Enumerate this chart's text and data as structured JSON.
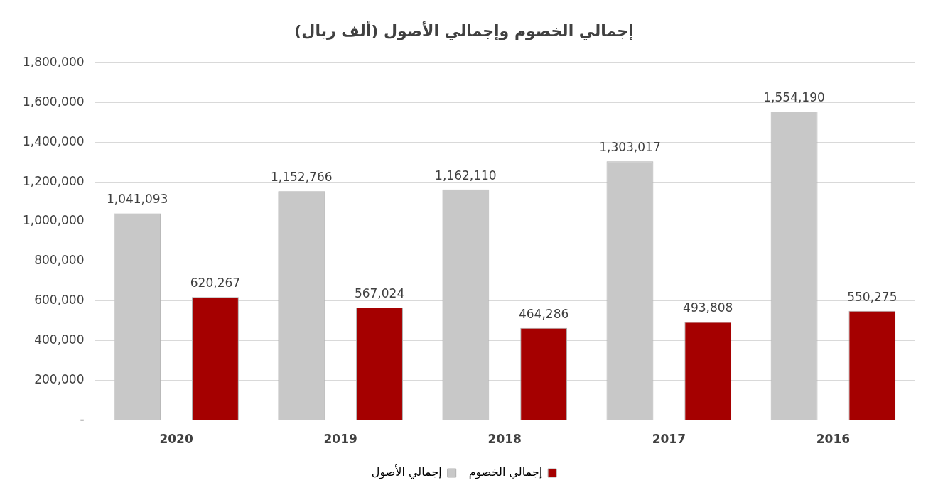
{
  "chart_data": {
    "type": "bar",
    "title": "إجمالي الخصوم وإجمالي الأصول (ألف ريال)",
    "categories": [
      "2020",
      "2019",
      "2018",
      "2017",
      "2016"
    ],
    "series": [
      {
        "name": "إجمالي الأصول",
        "color": "#c8c8c8",
        "values": [
          1041093,
          1152766,
          1162110,
          1303017,
          1554190
        ],
        "value_labels": [
          "1,041,093",
          "1,152,766",
          "1,162,110",
          "1,303,017",
          "1,554,190"
        ]
      },
      {
        "name": "إجمالي الخصوم",
        "color": "#a50000",
        "values": [
          620267,
          567024,
          464286,
          493808,
          550275
        ],
        "value_labels": [
          "620,267",
          "567,024",
          "464,286",
          "493,808",
          "550,275"
        ]
      }
    ],
    "ylim": [
      0,
      1800000
    ],
    "yticks": [
      {
        "value": 0,
        "label": "-"
      },
      {
        "value": 200000,
        "label": "200,000"
      },
      {
        "value": 400000,
        "label": "400,000"
      },
      {
        "value": 600000,
        "label": "600,000"
      },
      {
        "value": 800000,
        "label": "800,000"
      },
      {
        "value": 1000000,
        "label": "1,000,000"
      },
      {
        "value": 1200000,
        "label": "1,200,000"
      },
      {
        "value": 1400000,
        "label": "1,400,000"
      },
      {
        "value": 1600000,
        "label": "1,600,000"
      },
      {
        "value": 1800000,
        "label": "1,800,000"
      }
    ],
    "grid": "y",
    "legend": "bottom"
  }
}
